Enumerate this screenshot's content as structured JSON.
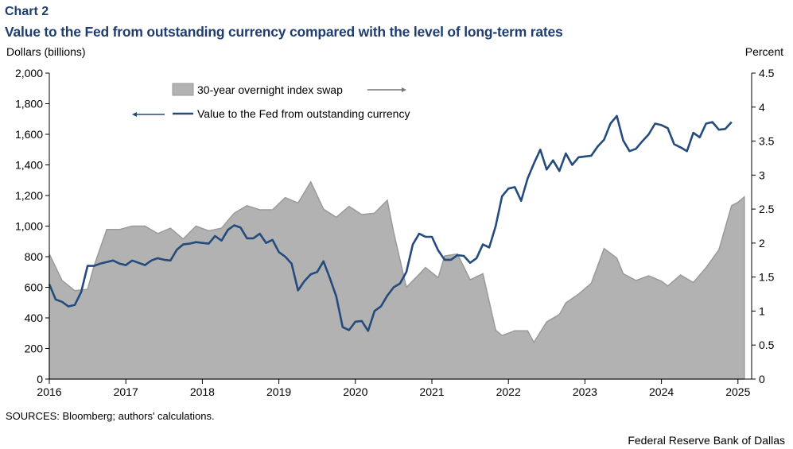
{
  "header": {
    "chart_label": "Chart 2",
    "title": "Value to the Fed from outstanding currency compared with the level of long-term rates"
  },
  "axes": {
    "left_unit": "Dollars  (billions)",
    "right_unit": "Percent"
  },
  "footer": {
    "source": "SOURCES: Bloomberg; authors' calculations.",
    "credit": "Federal Reserve Bank of Dallas"
  },
  "colors": {
    "area_fill": "#b2b2b2",
    "area_edge": "#9a9a9a",
    "line": "#254b7c",
    "title": "#1f3d6e"
  },
  "chart_data": {
    "type": "area+line",
    "legend_position": "top-left, inside plot",
    "grid": false,
    "x": {
      "start": "2016-01",
      "end": "2025-02",
      "tick_labels": [
        "2016",
        "2017",
        "2018",
        "2019",
        "2020",
        "2021",
        "2022",
        "2023",
        "2024",
        "2025"
      ]
    },
    "y_left": {
      "min": 0,
      "max": 2000,
      "ticks": [
        0,
        200,
        400,
        600,
        800,
        1000,
        1200,
        1400,
        1600,
        1800,
        2000
      ],
      "tick_labels": [
        "0",
        "200",
        "400",
        "600",
        "800",
        "1,000",
        "1,200",
        "1,400",
        "1,600",
        "1,800",
        "2,000"
      ]
    },
    "y_right": {
      "min": 0,
      "max": 4.5,
      "ticks": [
        0,
        0.5,
        1,
        1.5,
        2,
        2.5,
        3,
        3.5,
        4,
        4.5
      ],
      "tick_labels": [
        "0",
        "0.5",
        "1",
        "1.5",
        "2",
        "2.5",
        "3",
        "3.5",
        "4",
        "4.5"
      ]
    },
    "series": [
      {
        "name": "30-year overnight index swap",
        "type": "area",
        "axis": "right",
        "points": [
          [
            "2016-01",
            1.84
          ],
          [
            "2016-03",
            1.45
          ],
          [
            "2016-05",
            1.3
          ],
          [
            "2016-07",
            1.32
          ],
          [
            "2016-08",
            1.66
          ],
          [
            "2016-10",
            2.2
          ],
          [
            "2016-12",
            2.2
          ],
          [
            "2017-02",
            2.25
          ],
          [
            "2017-04",
            2.25
          ],
          [
            "2017-06",
            2.14
          ],
          [
            "2017-08",
            2.22
          ],
          [
            "2017-10",
            2.06
          ],
          [
            "2017-12",
            2.25
          ],
          [
            "2018-02",
            2.18
          ],
          [
            "2018-04",
            2.22
          ],
          [
            "2018-06",
            2.44
          ],
          [
            "2018-08",
            2.55
          ],
          [
            "2018-10",
            2.49
          ],
          [
            "2018-12",
            2.49
          ],
          [
            "2019-02",
            2.67
          ],
          [
            "2019-04",
            2.59
          ],
          [
            "2019-06",
            2.9
          ],
          [
            "2019-08",
            2.5
          ],
          [
            "2019-10",
            2.38
          ],
          [
            "2019-12",
            2.54
          ],
          [
            "2020-02",
            2.42
          ],
          [
            "2020-04",
            2.44
          ],
          [
            "2020-06",
            2.63
          ],
          [
            "2020-07",
            2.16
          ],
          [
            "2020-09",
            1.35
          ],
          [
            "2020-11",
            1.54
          ],
          [
            "2020-12",
            1.64
          ],
          [
            "2021-02",
            1.49
          ],
          [
            "2021-03",
            1.81
          ],
          [
            "2021-05",
            1.84
          ],
          [
            "2021-07",
            1.46
          ],
          [
            "2021-09",
            1.55
          ],
          [
            "2021-11",
            0.72
          ],
          [
            "2021-12",
            0.64
          ],
          [
            "2022-02",
            0.71
          ],
          [
            "2022-04",
            0.71
          ],
          [
            "2022-05",
            0.54
          ],
          [
            "2022-07",
            0.84
          ],
          [
            "2022-09",
            0.95
          ],
          [
            "2022-10",
            1.12
          ],
          [
            "2022-12",
            1.25
          ],
          [
            "2023-02",
            1.41
          ],
          [
            "2023-04",
            1.92
          ],
          [
            "2023-06",
            1.78
          ],
          [
            "2023-07",
            1.55
          ],
          [
            "2023-09",
            1.45
          ],
          [
            "2023-11",
            1.52
          ],
          [
            "2024-01",
            1.44
          ],
          [
            "2024-02",
            1.37
          ],
          [
            "2024-04",
            1.53
          ],
          [
            "2024-06",
            1.42
          ],
          [
            "2024-08",
            1.64
          ],
          [
            "2024-10",
            1.9
          ],
          [
            "2024-12",
            2.55
          ],
          [
            "2025-01",
            2.6
          ],
          [
            "2025-02",
            2.68
          ]
        ]
      },
      {
        "name": "Value to the Fed from outstanding currency",
        "type": "line",
        "axis": "left",
        "points": [
          [
            "2016-01",
            620
          ],
          [
            "2016-02",
            520
          ],
          [
            "2016-03",
            505
          ],
          [
            "2016-04",
            475
          ],
          [
            "2016-05",
            485
          ],
          [
            "2016-06",
            570
          ],
          [
            "2016-07",
            740
          ],
          [
            "2016-08",
            740
          ],
          [
            "2016-09",
            755
          ],
          [
            "2016-10",
            765
          ],
          [
            "2016-11",
            775
          ],
          [
            "2016-12",
            755
          ],
          [
            "2017-01",
            745
          ],
          [
            "2017-02",
            775
          ],
          [
            "2017-03",
            760
          ],
          [
            "2017-04",
            745
          ],
          [
            "2017-05",
            775
          ],
          [
            "2017-06",
            790
          ],
          [
            "2017-07",
            780
          ],
          [
            "2017-08",
            775
          ],
          [
            "2017-09",
            845
          ],
          [
            "2017-10",
            880
          ],
          [
            "2017-11",
            885
          ],
          [
            "2017-12",
            895
          ],
          [
            "2018-01",
            890
          ],
          [
            "2018-02",
            885
          ],
          [
            "2018-03",
            935
          ],
          [
            "2018-04",
            905
          ],
          [
            "2018-05",
            975
          ],
          [
            "2018-06",
            1005
          ],
          [
            "2018-07",
            990
          ],
          [
            "2018-08",
            920
          ],
          [
            "2018-09",
            920
          ],
          [
            "2018-10",
            950
          ],
          [
            "2018-11",
            890
          ],
          [
            "2018-12",
            910
          ],
          [
            "2019-01",
            830
          ],
          [
            "2019-02",
            800
          ],
          [
            "2019-03",
            755
          ],
          [
            "2019-04",
            580
          ],
          [
            "2019-05",
            640
          ],
          [
            "2019-06",
            685
          ],
          [
            "2019-07",
            700
          ],
          [
            "2019-08",
            770
          ],
          [
            "2019-09",
            660
          ],
          [
            "2019-10",
            540
          ],
          [
            "2019-11",
            340
          ],
          [
            "2019-12",
            320
          ],
          [
            "2020-01",
            375
          ],
          [
            "2020-02",
            380
          ],
          [
            "2020-03",
            315
          ],
          [
            "2020-04",
            445
          ],
          [
            "2020-05",
            475
          ],
          [
            "2020-06",
            545
          ],
          [
            "2020-07",
            600
          ],
          [
            "2020-08",
            625
          ],
          [
            "2020-09",
            700
          ],
          [
            "2020-10",
            880
          ],
          [
            "2020-11",
            950
          ],
          [
            "2020-12",
            930
          ],
          [
            "2021-01",
            930
          ],
          [
            "2021-02",
            840
          ],
          [
            "2021-03",
            780
          ],
          [
            "2021-04",
            780
          ],
          [
            "2021-05",
            810
          ],
          [
            "2021-06",
            805
          ],
          [
            "2021-07",
            760
          ],
          [
            "2021-08",
            790
          ],
          [
            "2021-09",
            880
          ],
          [
            "2021-10",
            860
          ],
          [
            "2021-11",
            1000
          ],
          [
            "2021-12",
            1195
          ],
          [
            "2022-01",
            1245
          ],
          [
            "2022-02",
            1255
          ],
          [
            "2022-03",
            1165
          ],
          [
            "2022-04",
            1310
          ],
          [
            "2022-05",
            1410
          ],
          [
            "2022-06",
            1500
          ],
          [
            "2022-07",
            1370
          ],
          [
            "2022-08",
            1430
          ],
          [
            "2022-09",
            1360
          ],
          [
            "2022-10",
            1475
          ],
          [
            "2022-11",
            1400
          ],
          [
            "2022-12",
            1450
          ],
          [
            "2023-01",
            1455
          ],
          [
            "2023-02",
            1460
          ],
          [
            "2023-03",
            1520
          ],
          [
            "2023-04",
            1565
          ],
          [
            "2023-05",
            1670
          ],
          [
            "2023-06",
            1720
          ],
          [
            "2023-07",
            1560
          ],
          [
            "2023-08",
            1490
          ],
          [
            "2023-09",
            1505
          ],
          [
            "2023-10",
            1555
          ],
          [
            "2023-11",
            1600
          ],
          [
            "2023-12",
            1670
          ],
          [
            "2024-01",
            1660
          ],
          [
            "2024-02",
            1640
          ],
          [
            "2024-03",
            1535
          ],
          [
            "2024-04",
            1515
          ],
          [
            "2024-05",
            1490
          ],
          [
            "2024-06",
            1610
          ],
          [
            "2024-07",
            1580
          ],
          [
            "2024-08",
            1670
          ],
          [
            "2024-09",
            1680
          ],
          [
            "2024-10",
            1630
          ],
          [
            "2024-11",
            1635
          ],
          [
            "2024-12",
            1680
          ]
        ]
      }
    ]
  }
}
